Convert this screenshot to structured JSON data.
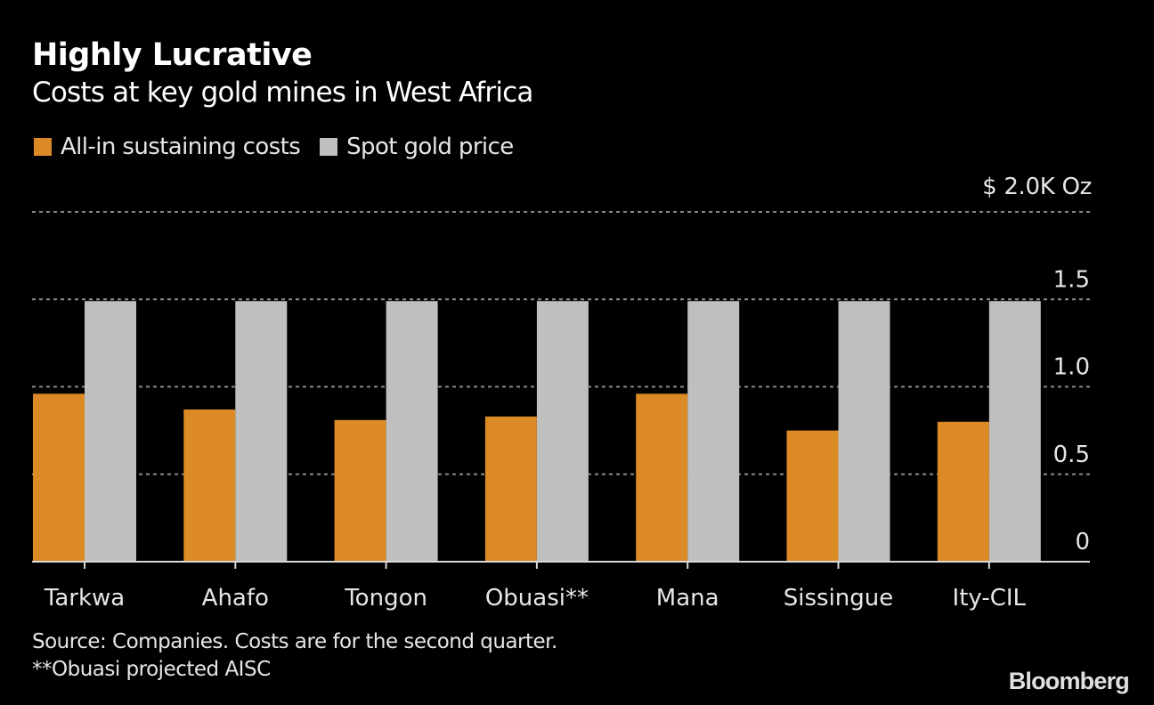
{
  "chart_data": {
    "type": "bar",
    "title": "Highly Lucrative",
    "subtitle": "Costs at key gold mines in West Africa",
    "categories": [
      "Tarkwa",
      "Ahafo",
      "Tongon",
      "Obuasi**",
      "Mana",
      "Sissingue",
      "Ity-CIL"
    ],
    "series": [
      {
        "name": "All-in sustaining costs",
        "color": "#db8a26",
        "values": [
          0.96,
          0.87,
          0.81,
          0.83,
          0.96,
          0.75,
          0.8
        ]
      },
      {
        "name": "Spot gold price",
        "color": "#bfbfbf",
        "values": [
          1.49,
          1.49,
          1.49,
          1.49,
          1.49,
          1.49,
          1.49
        ]
      }
    ],
    "ylim": [
      0,
      2.0
    ],
    "yticks": [
      0,
      0.5,
      1.0,
      1.5,
      2.0
    ],
    "ytick_labels": [
      "0",
      "0.5",
      "1.0",
      "1.5",
      "$ 2.0K Oz"
    ],
    "xlabel": "",
    "ylabel": "$K per Oz",
    "grid": true,
    "legend_position": "top-left",
    "y_axis_side": "right"
  },
  "legend": [
    {
      "label": "All-in sustaining costs",
      "color": "#db8a26"
    },
    {
      "label": "Spot gold price",
      "color": "#bfbfbf"
    }
  ],
  "footnotes": {
    "source": "Source: Companies. Costs are for the second quarter.",
    "note": "**Obuasi projected AISC"
  },
  "brand": "Bloomberg"
}
